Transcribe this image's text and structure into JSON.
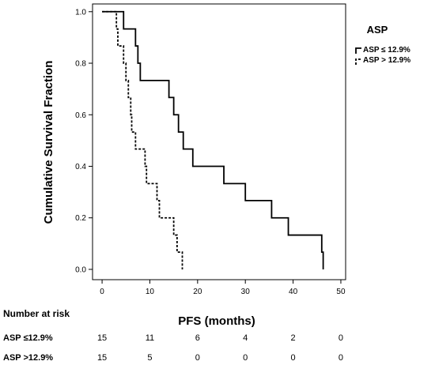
{
  "chart_data": {
    "type": "line",
    "subtype": "kaplan-meier-step",
    "xlabel": "PFS (months)",
    "ylabel": "Cumulative Survival Fraction",
    "xlim": [
      -2,
      51
    ],
    "ylim": [
      -0.04,
      1.03
    ],
    "x_ticks": [
      "0",
      "10",
      "20",
      "30",
      "40",
      "50"
    ],
    "y_ticks": [
      "0.0",
      "0.2",
      "0.4",
      "0.6",
      "0.8",
      "1.0"
    ],
    "grid": false,
    "legend": {
      "title": "ASP",
      "position": "right",
      "entries": [
        "ASP ≤ 12.9%",
        "ASP > 12.9%"
      ]
    },
    "series": [
      {
        "name": "ASP ≤ 12.9%",
        "style": "solid",
        "steps": [
          [
            0,
            1.0
          ],
          [
            4.5,
            0.933
          ],
          [
            7.0,
            0.867
          ],
          [
            7.5,
            0.8
          ],
          [
            8.0,
            0.733
          ],
          [
            14.0,
            0.667
          ],
          [
            15.0,
            0.6
          ],
          [
            16.0,
            0.533
          ],
          [
            17.0,
            0.467
          ],
          [
            19.0,
            0.4
          ],
          [
            25.5,
            0.333
          ],
          [
            30.0,
            0.267
          ],
          [
            35.5,
            0.2
          ],
          [
            39.0,
            0.133
          ],
          [
            46.0,
            0.067
          ],
          [
            46.3,
            0.0
          ]
        ]
      },
      {
        "name": "ASP > 12.9%",
        "style": "dashed",
        "steps": [
          [
            0,
            1.0
          ],
          [
            3.0,
            0.933
          ],
          [
            3.3,
            0.867
          ],
          [
            4.5,
            0.8
          ],
          [
            5.0,
            0.733
          ],
          [
            5.5,
            0.667
          ],
          [
            6.0,
            0.6
          ],
          [
            6.2,
            0.533
          ],
          [
            7.0,
            0.467
          ],
          [
            9.0,
            0.4
          ],
          [
            9.3,
            0.333
          ],
          [
            11.5,
            0.267
          ],
          [
            12.0,
            0.2
          ],
          [
            15.0,
            0.133
          ],
          [
            15.7,
            0.067
          ],
          [
            16.8,
            0.0
          ]
        ]
      }
    ],
    "risk_table": {
      "title": "Number at risk",
      "times": [
        0,
        10,
        20,
        30,
        40,
        50
      ],
      "rows": [
        {
          "label": "ASP ≤12.9%",
          "counts": [
            "15",
            "11",
            "6",
            "4",
            "2",
            "0"
          ]
        },
        {
          "label": "ASP >12.9%",
          "counts": [
            "15",
            "5",
            "0",
            "0",
            "0",
            "0"
          ]
        }
      ]
    }
  }
}
